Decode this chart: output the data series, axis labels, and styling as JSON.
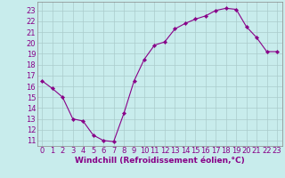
{
  "x": [
    0,
    1,
    2,
    3,
    4,
    5,
    6,
    7,
    8,
    9,
    10,
    11,
    12,
    13,
    14,
    15,
    16,
    17,
    18,
    19,
    20,
    21,
    22,
    23
  ],
  "y": [
    16.5,
    15.8,
    15.0,
    13.0,
    12.8,
    11.5,
    11.0,
    10.9,
    13.5,
    16.5,
    18.5,
    19.8,
    20.1,
    21.3,
    21.8,
    22.2,
    22.5,
    23.0,
    23.2,
    23.1,
    21.5,
    20.5,
    19.2,
    19.2
  ],
  "line_color": "#880088",
  "marker": "D",
  "marker_size": 2.2,
  "bg_color": "#c8ecec",
  "grid_color": "#aacccc",
  "xlabel": "Windchill (Refroidissement éolien,°C)",
  "ylabel_ticks": [
    11,
    12,
    13,
    14,
    15,
    16,
    17,
    18,
    19,
    20,
    21,
    22,
    23
  ],
  "xlabel_ticks": [
    0,
    1,
    2,
    3,
    4,
    5,
    6,
    7,
    8,
    9,
    10,
    11,
    12,
    13,
    14,
    15,
    16,
    17,
    18,
    19,
    20,
    21,
    22,
    23
  ],
  "ylim": [
    10.5,
    23.8
  ],
  "xlim": [
    -0.5,
    23.5
  ],
  "xlabel_fontsize": 6.5,
  "tick_fontsize": 6.0,
  "label_color": "#880088",
  "spine_color": "#888888"
}
